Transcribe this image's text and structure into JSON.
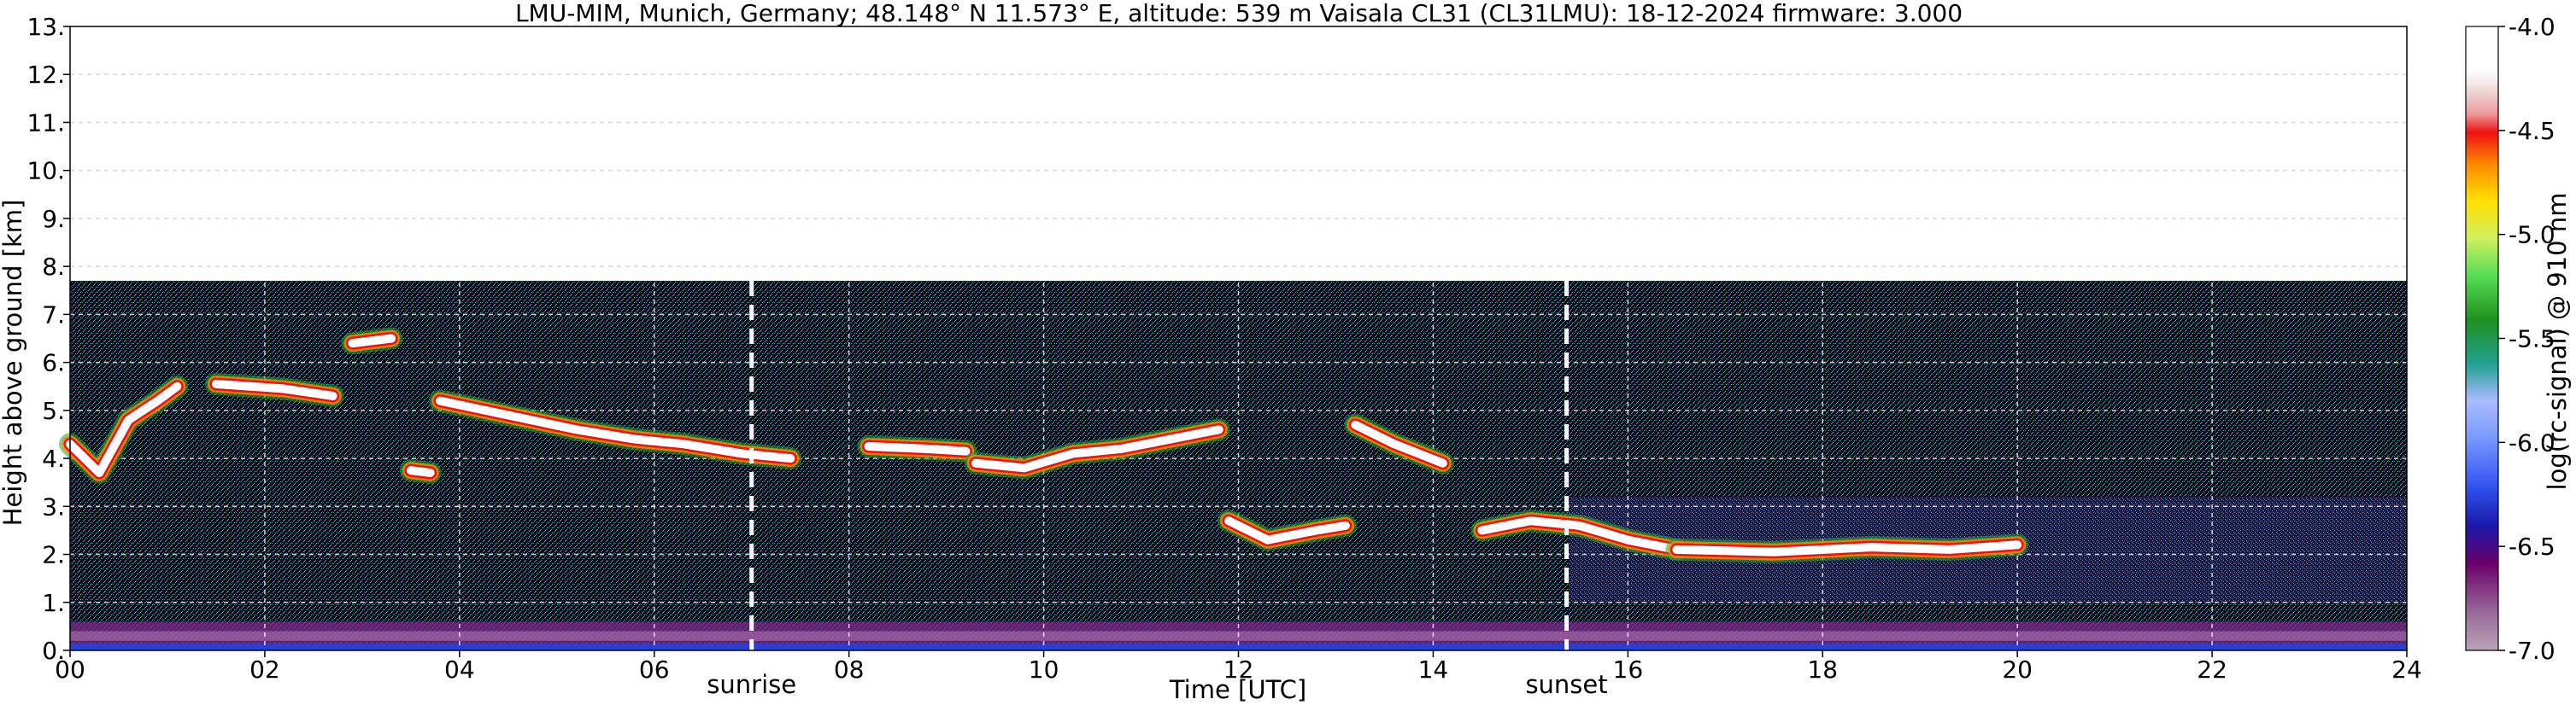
{
  "chart_data": {
    "type": "heatmap",
    "title": "LMU-MIM, Munich, Germany; 48.148° N 11.573° E, altitude: 539 m    Vaisala CL31 (CL31LMU): 18-12-2024    firmware: 3.000",
    "xlabel": "Time [UTC]",
    "ylabel": "Height above ground [km]",
    "xlim": [
      0,
      24
    ],
    "ylim": [
      0,
      13
    ],
    "xticks": [
      "00",
      "02",
      "04",
      "06",
      "08",
      "10",
      "12",
      "14",
      "16",
      "18",
      "20",
      "22",
      "24"
    ],
    "xtick_values": [
      0,
      2,
      4,
      6,
      8,
      10,
      12,
      14,
      16,
      18,
      20,
      22,
      24
    ],
    "yticks": [
      "0.",
      "1.",
      "2.",
      "3.",
      "4.",
      "5.",
      "6.",
      "7.",
      "8.",
      "9.",
      "10.",
      "11.",
      "12.",
      "13."
    ],
    "ytick_values": [
      0,
      1,
      2,
      3,
      4,
      5,
      6,
      7,
      8,
      9,
      10,
      11,
      12,
      13
    ],
    "grid": true,
    "data_top_km": 7.7,
    "events": [
      {
        "label": "sunrise",
        "time": 7.0
      },
      {
        "label": "sunset",
        "time": 15.37
      }
    ],
    "colorbar": {
      "label": "log(rc-signal) @ 910 nm",
      "range": [
        -7.0,
        -4.0
      ],
      "ticks": [
        "-4.0",
        "-4.5",
        "-5.0",
        "-5.5",
        "-6.0",
        "-6.5",
        "-7.0"
      ],
      "tick_values": [
        -4.0,
        -4.5,
        -5.0,
        -5.5,
        -6.0,
        -6.5,
        -7.0
      ]
    },
    "cloud_layers": [
      {
        "t": [
          0.0,
          0.3,
          0.6,
          0.9,
          1.1
        ],
        "h": [
          4.3,
          3.7,
          4.8,
          5.2,
          5.5
        ]
      },
      {
        "t": [
          1.5,
          2.2,
          2.7
        ],
        "h": [
          5.55,
          5.45,
          5.3
        ]
      },
      {
        "t": [
          2.9,
          3.3
        ],
        "h": [
          6.4,
          6.5
        ]
      },
      {
        "t": [
          3.5,
          3.7
        ],
        "h": [
          3.75,
          3.7
        ]
      },
      {
        "t": [
          3.8,
          4.5,
          5.2,
          5.8,
          6.3,
          6.9,
          7.4
        ],
        "h": [
          5.2,
          4.9,
          4.6,
          4.4,
          4.3,
          4.1,
          4.0
        ]
      },
      {
        "t": [
          8.2,
          8.8,
          9.2
        ],
        "h": [
          4.25,
          4.2,
          4.15
        ]
      },
      {
        "t": [
          9.3,
          9.8,
          10.3,
          10.8,
          11.3,
          11.8
        ],
        "h": [
          3.9,
          3.8,
          4.1,
          4.2,
          4.4,
          4.6
        ]
      },
      {
        "t": [
          11.9,
          12.3,
          12.8,
          13.1
        ],
        "h": [
          2.7,
          2.3,
          2.5,
          2.6
        ]
      },
      {
        "t": [
          13.2,
          13.6,
          14.1
        ],
        "h": [
          4.7,
          4.3,
          3.9
        ]
      },
      {
        "t": [
          14.5,
          15.0,
          15.5,
          16.0,
          16.5
        ],
        "h": [
          2.5,
          2.7,
          2.6,
          2.3,
          2.1
        ]
      },
      {
        "t": [
          16.5,
          17.5,
          18.5,
          19.3,
          20.0
        ],
        "h": [
          2.1,
          2.05,
          2.15,
          2.1,
          2.2
        ]
      }
    ]
  }
}
